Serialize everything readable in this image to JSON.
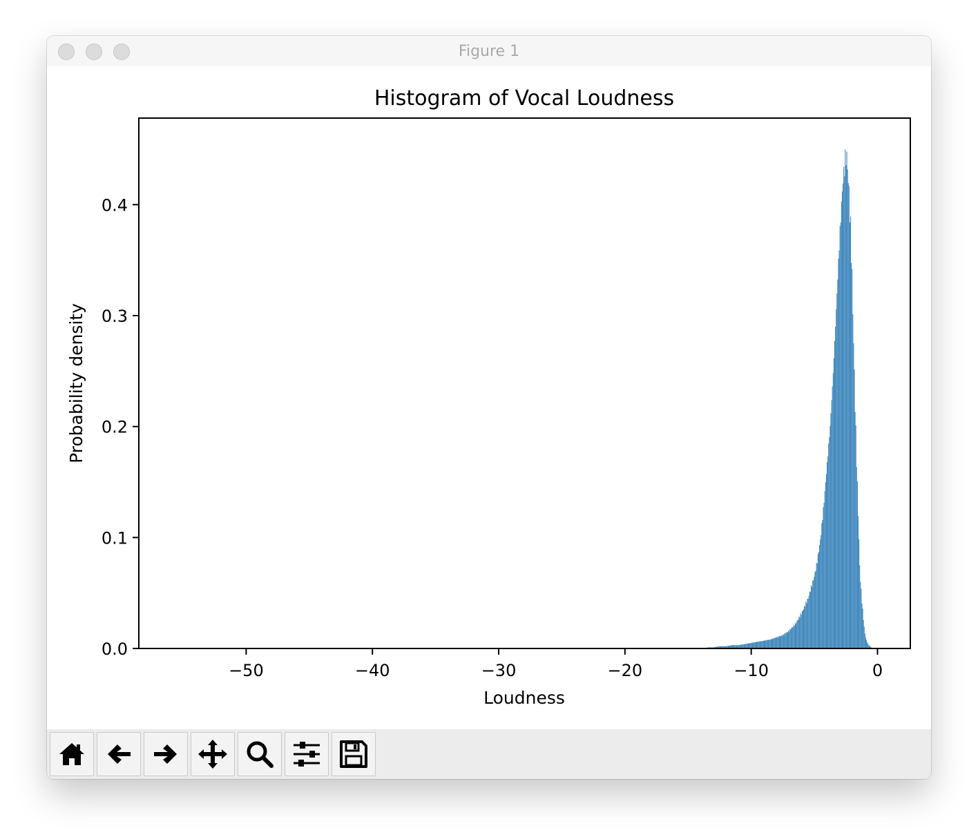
{
  "window": {
    "title": "Figure 1"
  },
  "toolbar": {
    "buttons": [
      {
        "name": "home",
        "icon": "home-icon"
      },
      {
        "name": "back",
        "icon": "arrow-left-icon"
      },
      {
        "name": "forward",
        "icon": "arrow-right-icon"
      },
      {
        "name": "pan",
        "icon": "move-icon"
      },
      {
        "name": "zoom",
        "icon": "search-icon"
      },
      {
        "name": "configure-subplots",
        "icon": "sliders-icon"
      },
      {
        "name": "save",
        "icon": "floppy-disk-icon"
      }
    ]
  },
  "colors": {
    "bar": "#4289bd",
    "axes": "#000000"
  },
  "chart_data": {
    "type": "bar",
    "title": "Histogram of Vocal Loudness",
    "xlabel": "Loudness",
    "ylabel": "Probability density",
    "xlim": [
      -58.5,
      2.6
    ],
    "ylim": [
      0,
      0.478
    ],
    "xticks": [
      -50,
      -40,
      -30,
      -20,
      -10,
      0
    ],
    "xtick_labels": [
      "−50",
      "−40",
      "−30",
      "−20",
      "−10",
      "0"
    ],
    "yticks": [
      0.0,
      0.1,
      0.2,
      0.3,
      0.4
    ],
    "ytick_labels": [
      "0.0",
      "0.1",
      "0.2",
      "0.3",
      "0.4"
    ],
    "grid": false,
    "series": [
      {
        "x": [
          -13.5,
          -13.0,
          -12.5,
          -12.0,
          -11.5,
          -11.0,
          -10.5,
          -10.0,
          -9.5,
          -9.0,
          -8.5,
          -8.0,
          -7.5,
          -7.0,
          -6.5,
          -6.0,
          -5.5,
          -5.0,
          -4.75,
          -4.5,
          -4.25,
          -4.0,
          -3.75,
          -3.5,
          -3.25,
          -3.0,
          -2.75,
          -2.6,
          -2.5,
          -2.4,
          -2.25,
          -2.1,
          -2.0,
          -1.9,
          -1.75,
          -1.6,
          -1.5,
          -1.4,
          -1.25,
          -1.1,
          -1.0,
          -0.9,
          -0.75,
          -0.6,
          -0.5
        ],
        "y": [
          0.001,
          0.001,
          0.002,
          0.002,
          0.003,
          0.003,
          0.004,
          0.005,
          0.006,
          0.007,
          0.008,
          0.01,
          0.012,
          0.016,
          0.022,
          0.032,
          0.045,
          0.065,
          0.08,
          0.1,
          0.13,
          0.165,
          0.2,
          0.25,
          0.31,
          0.37,
          0.42,
          0.435,
          0.445,
          0.44,
          0.41,
          0.37,
          0.33,
          0.28,
          0.21,
          0.15,
          0.11,
          0.07,
          0.045,
          0.025,
          0.014,
          0.008,
          0.004,
          0.002,
          0.001
        ]
      }
    ]
  }
}
